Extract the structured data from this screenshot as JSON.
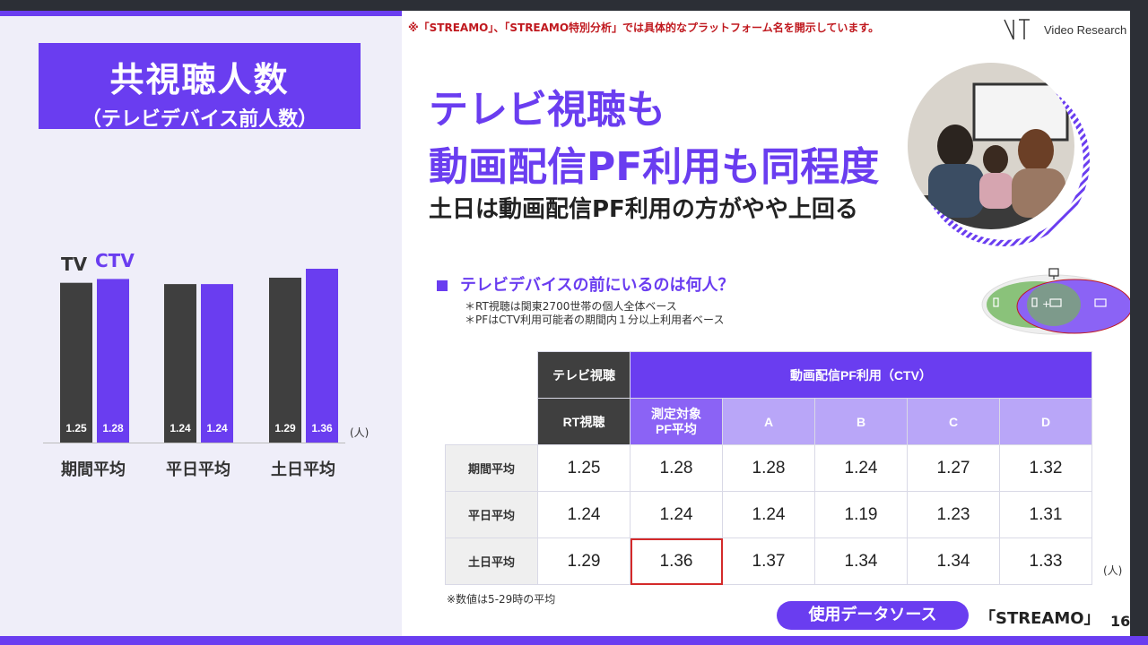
{
  "slide": {
    "title_main": "共視聴人数",
    "title_sub": "（テレビデバイス前人数）",
    "notice": "※「STREAMO」、「STREAMO特別分析」では具体的なプラットフォーム名を開示しています。",
    "logo_text": "Video Research",
    "headline_1": "テレビ視聴も",
    "headline_2": "動画配信PF利用も同程度",
    "subhead": "土日は動画配信PF利用の方がやや上回る",
    "question": "テレビデバイスの前にいるのは何人？",
    "note_1": "＊RT視聴は関東2700世帯の個人全体ベース",
    "note_2": "＊PFはCTV利用可能者の期間内１分以上利用者ベース",
    "venn_label": "+",
    "footnote": "※数値は5-29時の平均",
    "source_label": "使用データソース",
    "source_name": "「STREAMO」",
    "page_number": "16",
    "colors": {
      "accent": "#6a3df0",
      "tv": "#3f3f3f",
      "highlight": "#d42a2a"
    }
  },
  "chart_data": {
    "type": "bar",
    "categories": [
      "期間平均",
      "平日平均",
      "土日平均"
    ],
    "series": [
      {
        "name": "TV",
        "values": [
          1.25,
          1.24,
          1.29
        ],
        "color": "#3f3f3f"
      },
      {
        "name": "CTV",
        "values": [
          1.28,
          1.24,
          1.36
        ],
        "color": "#6a3df0"
      }
    ],
    "unit": "(人)",
    "ylim": [
      0,
      1.36
    ],
    "legend": "top-left"
  },
  "table": {
    "header_tv": "テレビ視聴",
    "header_ctv": "動画配信PF利用（CTV）",
    "sub_headers": [
      "RT視聴",
      "測定対象\nPF平均",
      "A",
      "B",
      "C",
      "D"
    ],
    "rows": [
      {
        "label": "期間平均",
        "values": [
          "1.25",
          "1.28",
          "1.28",
          "1.24",
          "1.27",
          "1.32"
        ]
      },
      {
        "label": "平日平均",
        "values": [
          "1.24",
          "1.24",
          "1.24",
          "1.19",
          "1.23",
          "1.31"
        ]
      },
      {
        "label": "土日平均",
        "values": [
          "1.29",
          "1.36",
          "1.37",
          "1.34",
          "1.34",
          "1.33"
        ]
      }
    ],
    "unit": "(人)"
  }
}
